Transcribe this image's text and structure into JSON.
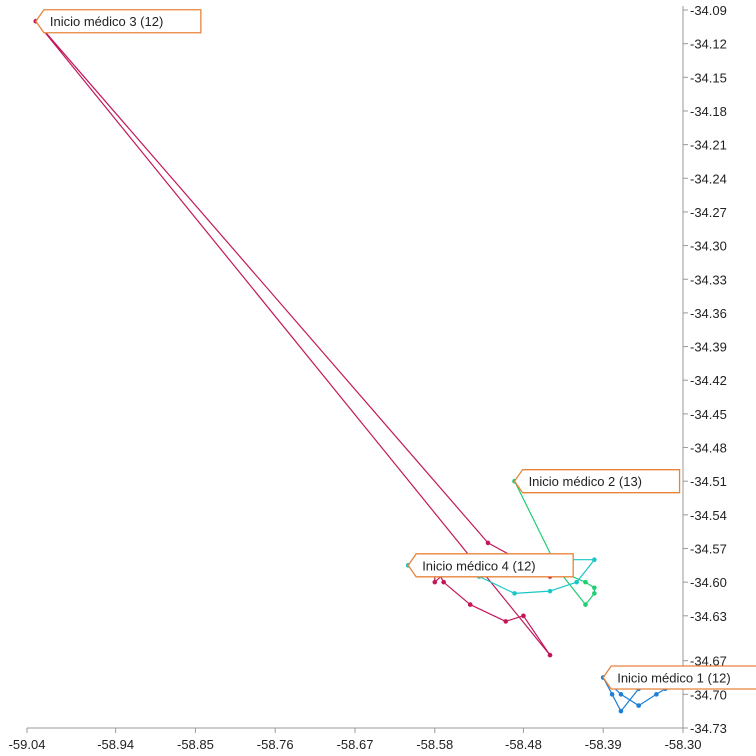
{
  "chart_data": {
    "type": "line",
    "title": "",
    "xlabel": "",
    "ylabel": "",
    "xlim": [
      -59.04,
      -58.3
    ],
    "ylim": [
      -34.73,
      -34.09
    ],
    "x_ticks": [
      -59.04,
      -58.94,
      -58.85,
      -58.76,
      -58.67,
      -58.58,
      -58.48,
      -58.39,
      -58.3
    ],
    "x_tick_labels": [
      "-59.04",
      "-58.94",
      "-58.85",
      "-58.76",
      "-58.67",
      "-58.58",
      "-58.48",
      "-58.39",
      "-58.30"
    ],
    "y_ticks": [
      -34.09,
      -34.12,
      -34.15,
      -34.18,
      -34.21,
      -34.24,
      -34.27,
      -34.3,
      -34.33,
      -34.36,
      -34.39,
      -34.42,
      -34.45,
      -34.48,
      -34.51,
      -34.54,
      -34.57,
      -34.6,
      -34.63,
      -34.67,
      -34.7,
      -34.73
    ],
    "y_tick_labels": [
      "-34.09",
      "-34.12",
      "-34.15",
      "-34.18",
      "-34.21",
      "-34.24",
      "-34.27",
      "-34.30",
      "-34.33",
      "-34.36",
      "-34.39",
      "-34.42",
      "-34.45",
      "-34.48",
      "-34.51",
      "-34.54",
      "-34.57",
      "-34.60",
      "-34.63",
      "-34.67",
      "-34.70",
      "-34.73"
    ],
    "y_axis_side": "right",
    "grid": false,
    "legend": "none",
    "series": [
      {
        "color": "#c2185b",
        "x": [
          -59.03,
          -58.52,
          -58.45,
          -58.52,
          -58.58,
          -58.56,
          -58.58,
          -58.58,
          -58.57,
          -58.54,
          -58.5,
          -58.48,
          -58.45,
          -59.03
        ],
        "y": [
          -34.1,
          -34.565,
          -34.595,
          -34.585,
          -34.58,
          -34.585,
          -34.6,
          -34.585,
          -34.6,
          -34.62,
          -34.635,
          -34.63,
          -34.665,
          -34.1
        ],
        "callout": "Inicio médico 3 (12)"
      },
      {
        "color": "#1fcf72",
        "x": [
          -58.49,
          -58.44,
          -58.41,
          -58.4,
          -58.4,
          -58.41,
          -58.44,
          -58.49
        ],
        "y": [
          -34.51,
          -34.59,
          -34.6,
          -34.605,
          -34.61,
          -34.62,
          -34.59,
          -34.51
        ],
        "callout": "Inicio médico 2 (13)"
      },
      {
        "color": "#19c7c7",
        "x": [
          -58.61,
          -58.58,
          -58.53,
          -58.47,
          -58.4,
          -58.42,
          -58.45,
          -58.49,
          -58.53,
          -58.57,
          -58.6,
          -58.61
        ],
        "y": [
          -34.585,
          -34.58,
          -34.582,
          -34.58,
          -34.58,
          -34.6,
          -34.608,
          -34.61,
          -34.595,
          -34.59,
          -34.583,
          -34.585
        ],
        "callout": "Inicio médico 4 (12)"
      },
      {
        "color": "#1e7fd6",
        "x": [
          -58.39,
          -58.37,
          -58.35,
          -58.33,
          -58.32,
          -58.33,
          -58.35,
          -58.37,
          -58.38,
          -58.39
        ],
        "y": [
          -34.685,
          -34.7,
          -34.71,
          -34.7,
          -34.695,
          -34.69,
          -34.695,
          -34.715,
          -34.7,
          -34.685
        ],
        "callout": "Inicio médico 1 (12)"
      }
    ]
  }
}
